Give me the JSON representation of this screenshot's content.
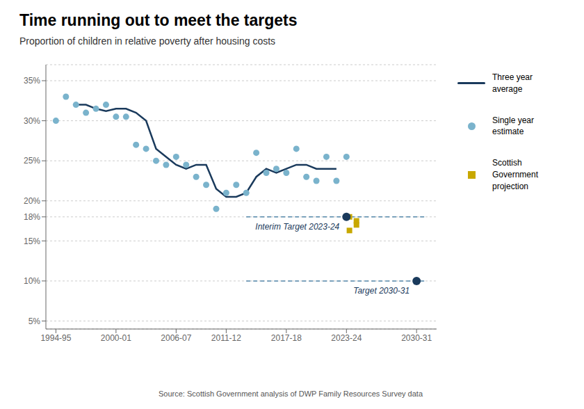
{
  "chart_data": {
    "type": "line",
    "title": "Time running out to meet the targets",
    "subtitle": "Proportion of children in relative poverty after housing costs",
    "source": "Source: Scottish Government analysis of DWP Family Resources Survey data",
    "series": [
      {
        "name": "Three year average",
        "type": "line",
        "color": "#1a3a5c",
        "x": [
          1996,
          1997,
          1998,
          1999,
          2000,
          2001,
          2002,
          2003,
          2004,
          2005,
          2006,
          2007,
          2008,
          2009,
          2010,
          2011,
          2012,
          2013,
          2014,
          2015,
          2016,
          2017,
          2018,
          2019,
          2020,
          2021,
          2022
        ],
        "values": [
          32.0,
          32.0,
          31.5,
          31.2,
          31.5,
          31.5,
          31.0,
          30.0,
          26.5,
          25.5,
          24.5,
          24.0,
          24.5,
          24.5,
          21.5,
          20.5,
          20.5,
          21.0,
          23.0,
          24.0,
          23.5,
          24.0,
          24.5,
          24.5,
          24.0,
          24.0,
          24.0
        ]
      },
      {
        "name": "Single year estimate",
        "type": "scatter",
        "marker": "circle",
        "color": "#7ab3cc",
        "x": [
          1994,
          1995,
          1996,
          1997,
          1998,
          1999,
          2000,
          2001,
          2002,
          2003,
          2004,
          2005,
          2006,
          2007,
          2008,
          2009,
          2010,
          2011,
          2012,
          2013,
          2014,
          2015,
          2016,
          2017,
          2018,
          2019,
          2020,
          2021,
          2022,
          2023
        ],
        "values": [
          30.0,
          33.0,
          32.0,
          31.0,
          31.5,
          32.0,
          30.5,
          30.5,
          27.0,
          26.5,
          25.0,
          24.5,
          25.5,
          24.5,
          23.0,
          22.0,
          19.0,
          21.0,
          22.0,
          21.0,
          26.0,
          23.5,
          24.0,
          23.5,
          26.5,
          23.0,
          22.5,
          25.5,
          22.5,
          25.5
        ]
      },
      {
        "name": "Scottish Government projection",
        "type": "scatter",
        "marker": "square",
        "color": "#c8a800",
        "x": [
          2023.3,
          2023.3,
          2024.0,
          2024.0
        ],
        "values": [
          18.0,
          16.3,
          17.5,
          17.0
        ]
      }
    ],
    "reference_lines": [
      {
        "y": 18,
        "x_start": 2013,
        "x_end": 2031,
        "color": "#5588aa",
        "line_style": "dashed"
      },
      {
        "y": 10,
        "x_start": 2013,
        "x_end": 2031,
        "color": "#5588aa",
        "line_style": "dashed"
      }
    ],
    "annotations": [
      {
        "text": "Interim Target 2023-24",
        "x": 2023,
        "y": 18,
        "color": "#1a3a5c"
      },
      {
        "text": "Target 2030-31",
        "x": 2030,
        "y": 10,
        "color": "#1a3a5c"
      }
    ],
    "xlim": [
      1993.0,
      2032.0
    ],
    "xticks": [
      {
        "value": 1994,
        "label": "1994-95"
      },
      {
        "value": 2000,
        "label": "2000-01"
      },
      {
        "value": 2006,
        "label": "2006-07"
      },
      {
        "value": 2011,
        "label": "2011-12"
      },
      {
        "value": 2017,
        "label": "2017-18"
      },
      {
        "value": 2023,
        "label": "2023-24"
      },
      {
        "value": 2030,
        "label": "2030-31"
      }
    ],
    "ylim": [
      4.0,
      37.0
    ],
    "yticks": [
      {
        "value": 5,
        "label": "5%"
      },
      {
        "value": 10,
        "label": "10%"
      },
      {
        "value": 15,
        "label": "15%"
      },
      {
        "value": 18,
        "label": "18%"
      },
      {
        "value": 20,
        "label": "20%"
      },
      {
        "value": 25,
        "label": "25%"
      },
      {
        "value": 30,
        "label": "30%"
      },
      {
        "value": 35,
        "label": "35%"
      }
    ],
    "grid": true
  }
}
